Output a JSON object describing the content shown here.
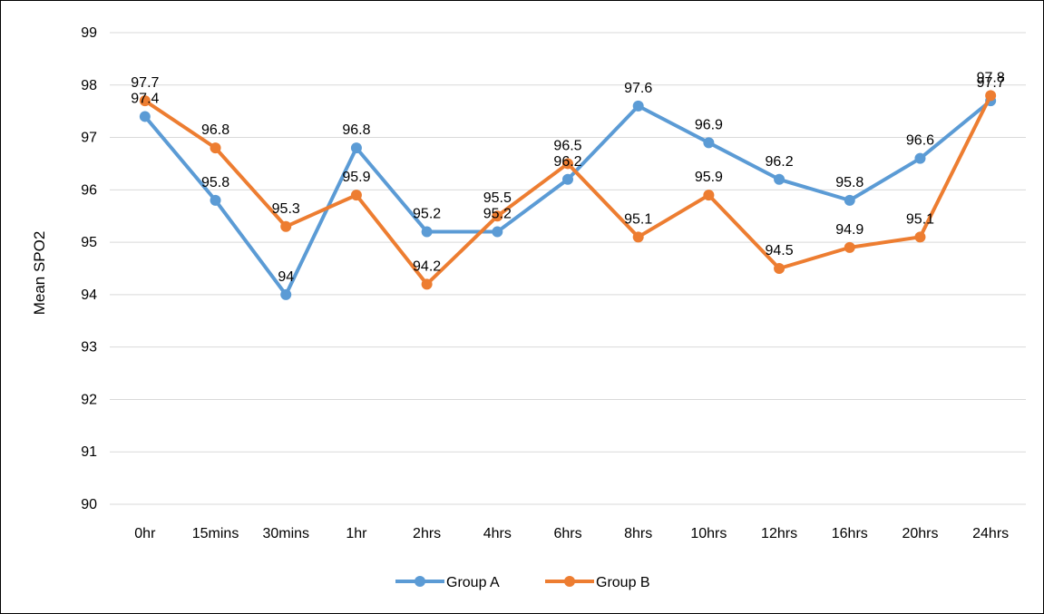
{
  "chart_data": {
    "type": "line",
    "title": "",
    "xlabel": "",
    "ylabel": "Mean SPO2",
    "ylim": [
      90,
      99
    ],
    "y_ticks": [
      90,
      91,
      92,
      93,
      94,
      95,
      96,
      97,
      98,
      99
    ],
    "grid": true,
    "legend_position": "bottom",
    "categories": [
      "0hr",
      "15mins",
      "30mins",
      "1hr",
      "2hrs",
      "4hrs",
      "6hrs",
      "8hrs",
      "10hrs",
      "12hrs",
      "16hrs",
      "20hrs",
      "24hrs"
    ],
    "series": [
      {
        "name": "Group A",
        "color": "#5b9bd5",
        "values": [
          97.4,
          95.8,
          94,
          96.8,
          95.2,
          95.2,
          96.2,
          97.6,
          96.9,
          96.2,
          95.8,
          96.6,
          97.7
        ],
        "labels": [
          "97.4",
          "95.8",
          "94",
          "96.8",
          "95.2",
          "95.2",
          "96.2",
          "97.6",
          "96.9",
          "96.2",
          "95.8",
          "96.6",
          "97.7"
        ]
      },
      {
        "name": "Group B",
        "color": "#ed7d31",
        "values": [
          97.7,
          96.8,
          95.3,
          95.9,
          94.2,
          95.5,
          96.5,
          95.1,
          95.9,
          94.5,
          94.9,
          95.1,
          97.8
        ],
        "labels": [
          "97.7",
          "96.8",
          "95.3",
          "95.9",
          "94.2",
          "95.5",
          "96.5",
          "95.1",
          "95.9",
          "94.5",
          "94.9",
          "95.1",
          "97.8"
        ]
      }
    ]
  }
}
